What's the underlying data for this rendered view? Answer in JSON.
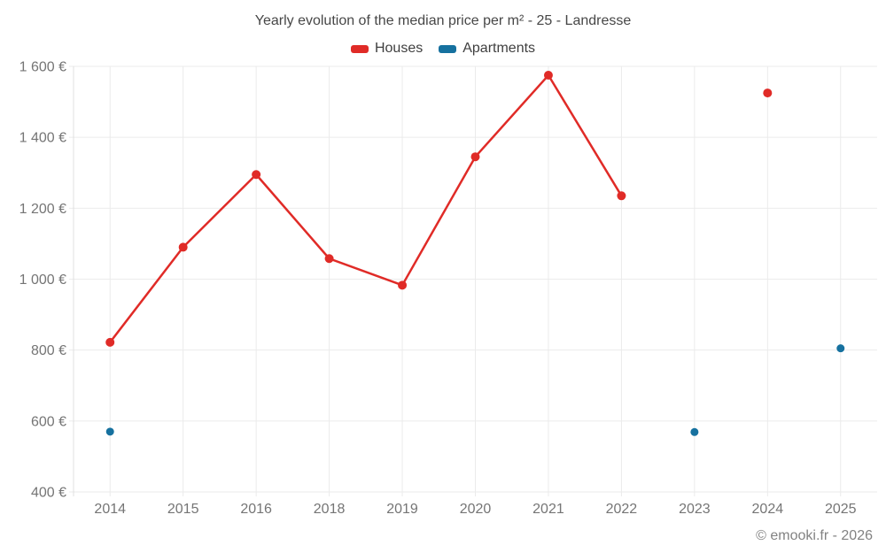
{
  "title": "Yearly evolution of the median price per m² - 25 - Landresse",
  "legend": {
    "items": [
      {
        "label": "Houses",
        "color": "#e02b27"
      },
      {
        "label": "Apartments",
        "color": "#16719f"
      }
    ]
  },
  "footer": {
    "credit": "© emooki.fr - 2026"
  },
  "colors": {
    "grid": "#ebebeb",
    "axis_border": "#e0e0e0",
    "axis_text": "#757575",
    "houses": "#e02b27",
    "apartments": "#16719f"
  },
  "chart_data": {
    "type": "line",
    "title": "Yearly evolution of the median price per m² - 25 - Landresse",
    "categories": [
      "2014",
      "2015",
      "2016",
      "2018",
      "2019",
      "2020",
      "2021",
      "2022",
      "2023",
      "2024",
      "2025"
    ],
    "series": [
      {
        "name": "Houses",
        "color": "#e02b27",
        "values": [
          822,
          1090,
          1295,
          1058,
          983,
          1345,
          1575,
          1235,
          null,
          1525,
          null
        ]
      },
      {
        "name": "Apartments",
        "color": "#16719f",
        "values": [
          570,
          null,
          null,
          null,
          null,
          null,
          null,
          null,
          569,
          null,
          805
        ]
      }
    ],
    "xlabel": "",
    "ylabel": "",
    "ylim": [
      400,
      1600
    ],
    "grid": true,
    "legend_position": "top",
    "y_ticks": [
      {
        "value": 400,
        "label": "400 €"
      },
      {
        "value": 600,
        "label": "600 €"
      },
      {
        "value": 800,
        "label": "800 €"
      },
      {
        "value": 1000,
        "label": "1 000 €"
      },
      {
        "value": 1200,
        "label": "1 200 €"
      },
      {
        "value": 1400,
        "label": "1 400 €"
      },
      {
        "value": 1600,
        "label": "1 600 €"
      }
    ]
  }
}
